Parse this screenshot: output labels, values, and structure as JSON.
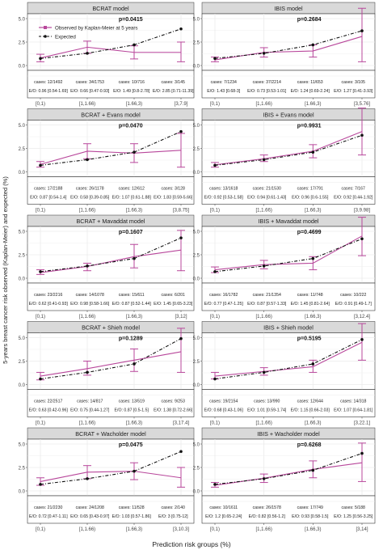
{
  "figure": {
    "ylabel": "5-years breast cancer risk observed (Kaplan-Meier) and expected (%)",
    "xlabel": "Prediction risk groups (%)",
    "legend": {
      "observed": "Observed by Kaplan-Meier at 5 years",
      "expected": "Expected",
      "placement": "top-left inside first panel"
    },
    "colors": {
      "observed": "#b8479b",
      "expected": "#111111",
      "strip": "#d9d9d9",
      "grid": "#ebebeb"
    }
  },
  "chart_data": [
    {
      "type": "line",
      "title": "BCRAT model",
      "pvalue": "p=0.0415",
      "ylim": [
        0,
        5
      ],
      "yticks": [
        "0.0",
        "2.5",
        "5.0"
      ],
      "categories": [
        "[0,1)",
        "[1,1.66)",
        "[1.66,3)",
        "[3,7.9]"
      ],
      "series": [
        {
          "name": "Observed by Kaplan-Meier at 5 years",
          "values": [
            0.8,
            1.95,
            1.4,
            1.4
          ],
          "lower": [
            0.4,
            1.3,
            0.7,
            0.4
          ],
          "upper": [
            1.2,
            2.6,
            2.1,
            2.5
          ]
        },
        {
          "name": "Expected",
          "values": [
            0.75,
            1.3,
            2.2,
            3.9
          ]
        }
      ],
      "cases": [
        "cases: 12/1492",
        "cases: 34/1753",
        "cases: 10/716",
        "cases: 3/145"
      ],
      "eo": [
        "E/O: 0.96 [0.54-1.69]",
        "E/O: 0.66 [0.47-0.93]",
        "E/O: 1.49 [0.8-2.78]",
        "E/O: 2.85 [0.71-11.39]"
      ]
    },
    {
      "type": "line",
      "title": "IBIS model",
      "pvalue": "p=0.2684",
      "ylim": [
        0,
        5
      ],
      "yticks": [
        "0.0",
        "2.5",
        "5.0"
      ],
      "categories": [
        "[0,1)",
        "[1,1.66)",
        "[1.66,3)",
        "[3,5.76]"
      ],
      "series": [
        {
          "name": "Observed by Kaplan-Meier at 5 years",
          "values": [
            0.6,
            1.4,
            1.55,
            3.1
          ],
          "lower": [
            0.4,
            0.9,
            0.9,
            0.4
          ],
          "upper": [
            0.9,
            1.9,
            2.2,
            6.1
          ]
        },
        {
          "name": "Expected",
          "values": [
            0.75,
            1.3,
            2.2,
            3.7
          ]
        }
      ],
      "cases": [
        "cases: 7/1234",
        "cases: 37/2214",
        "cases: 11/653",
        "cases: 3/105"
      ],
      "eo": [
        "E/O: 1.43 [0.68-3]",
        "E/O: 0.73 [0.53-1.01]",
        "E/O: 1.24 [0.69-2.24]",
        "E/O: 1.27 [0.41-3.93]"
      ]
    },
    {
      "type": "line",
      "title": "BCRAT + Evans model",
      "pvalue": "p=0.0470",
      "ylim": [
        0,
        5
      ],
      "yticks": [
        "0.0",
        "2.5",
        "5.0"
      ],
      "categories": [
        "[0,1)",
        "[1,1.66)",
        "[1.66,3)",
        "[3,8.75]"
      ],
      "series": [
        {
          "name": "Observed by Kaplan-Meier at 5 years",
          "values": [
            0.8,
            2.2,
            2.0,
            2.3
          ],
          "lower": [
            0.5,
            1.4,
            1.0,
            0.5
          ],
          "upper": [
            1.1,
            3.0,
            3.0,
            4.1
          ]
        },
        {
          "name": "Expected",
          "values": [
            0.7,
            1.3,
            2.1,
            4.3
          ]
        }
      ],
      "cases": [
        "cases: 17/2188",
        "cases: 26/1178",
        "cases: 12/612",
        "cases: 3/128"
      ],
      "eo": [
        "E/O: 0.87 [0.54-1.4]",
        "E/O: 0.58 [0.39-0.85]",
        "E/O: 1.07 [0.61-1.88]",
        "E/O: 1.83 [0.59-5.66]"
      ]
    },
    {
      "type": "line",
      "title": "IBIS + Evans model",
      "pvalue": "p=0.9931",
      "ylim": [
        0,
        5
      ],
      "yticks": [
        "0.0",
        "2.5",
        "5.0"
      ],
      "categories": [
        "[0,1)",
        "[1,1.66)",
        "[1.66,3)",
        "[3,9.98]"
      ],
      "series": [
        {
          "name": "Observed by Kaplan-Meier at 5 years",
          "values": [
            0.75,
            1.4,
            2.2,
            4.3
          ],
          "lower": [
            0.5,
            1.1,
            1.5,
            1.8
          ],
          "upper": [
            1.0,
            1.8,
            2.9,
            6.8
          ]
        },
        {
          "name": "Expected",
          "values": [
            0.7,
            1.3,
            2.1,
            3.9
          ]
        }
      ],
      "cases": [
        "cases: 13/1618",
        "cases: 21/1530",
        "cases: 17/791",
        "cases: 7/167"
      ],
      "eo": [
        "E/O: 0.92 [0.53-1.58]",
        "E/O: 0.94 [0.61-1.43]",
        "E/O: 0.96 [0.6-1.55]",
        "E/O: 0.92 [0.44-1.92]"
      ]
    },
    {
      "type": "line",
      "title": "BCRAT + Mavaddat model",
      "pvalue": "p=0.1607",
      "ylim": [
        0,
        5
      ],
      "yticks": [
        "0.0",
        "2.5",
        "5.0"
      ],
      "categories": [
        "[0,1)",
        "[1,1.66)",
        "[1.66,3)",
        "[3,12]"
      ],
      "series": [
        {
          "name": "Observed by Kaplan-Meier at 5 years",
          "values": [
            0.6,
            1.25,
            2.3,
            3.0
          ],
          "lower": [
            0.4,
            0.8,
            1.1,
            0.8
          ],
          "upper": [
            0.9,
            1.6,
            3.6,
            5.1
          ]
        },
        {
          "name": "Expected",
          "values": [
            0.7,
            1.3,
            2.1,
            4.3
          ]
        }
      ],
      "cases": [
        "cases: 23/2216",
        "cases: 14/1078",
        "cases: 15/611",
        "cases: 6/201"
      ],
      "eo": [
        "E/O: 0.62 [0.41-0.93]",
        "E/O: 0.98 [0.58-1.66]",
        "E/O: 0.87 [0.52-1.44]",
        "E/O: 1.45 [0.65-3.23]"
      ]
    },
    {
      "type": "line",
      "title": "IBIS + Mavaddat model",
      "pvalue": "p=0.4699",
      "ylim": [
        0,
        5
      ],
      "yticks": [
        "0.0",
        "2.5",
        "5.0"
      ],
      "categories": [
        "[0,1)",
        "[1,1.66)",
        "[1.66,3)",
        "[3,12.4]"
      ],
      "series": [
        {
          "name": "Observed by Kaplan-Meier at 5 years",
          "values": [
            0.9,
            1.45,
            1.6,
            4.5
          ],
          "lower": [
            0.6,
            1.0,
            0.9,
            2.4
          ],
          "upper": [
            1.2,
            1.9,
            2.3,
            6.5
          ]
        },
        {
          "name": "Expected",
          "values": [
            0.7,
            1.3,
            2.1,
            4.2
          ]
        }
      ],
      "cases": [
        "cases: 16/1782",
        "cases: 21/1354",
        "cases: 11/748",
        "cases: 10/222"
      ],
      "eo": [
        "E/O: 0.77 [0.47-1.25]",
        "E/O: 0.87 [0.57-1.33]",
        "E/O: 1.45 [0.81-2.64]",
        "E/O: 0.91 [0.49-1.7]"
      ]
    },
    {
      "type": "line",
      "title": "BCRAT + Shieh model",
      "pvalue": "p=0.1289",
      "ylim": [
        0,
        5
      ],
      "yticks": [
        "0.0",
        "2.5",
        "5.0"
      ],
      "categories": [
        "[0,1)",
        "[1,1.66)",
        "[1.66,3)",
        "[3,17.4]"
      ],
      "series": [
        {
          "name": "Observed by Kaplan-Meier at 5 years",
          "values": [
            0.9,
            1.7,
            2.6,
            3.5
          ],
          "lower": [
            0.5,
            1.0,
            1.4,
            1.3
          ],
          "upper": [
            1.3,
            2.5,
            3.8,
            6.0
          ]
        },
        {
          "name": "Expected",
          "values": [
            0.6,
            1.3,
            2.2,
            4.9
          ]
        }
      ],
      "cases": [
        "cases: 22/2517",
        "cases: 14/817",
        "cases: 13/519",
        "cases: 9/253"
      ],
      "eo": [
        "E/O: 0.63 [0.42-0.96]",
        "E/O: 0.75 [0.44-1.27]",
        "E/O: 0.87 [0.5-1.5]",
        "E/O: 1.38 [0.72-2.66]"
      ]
    },
    {
      "type": "line",
      "title": "IBIS + Shieh model",
      "pvalue": "p=0.5195",
      "ylim": [
        0,
        5
      ],
      "yticks": [
        "0.0",
        "2.5",
        "5.0"
      ],
      "categories": [
        "[0,1)",
        "[1,1.66)",
        "[1.66,3)",
        "[3,22.1]"
      ],
      "series": [
        {
          "name": "Observed by Kaplan-Meier at 5 years",
          "values": [
            0.9,
            1.4,
            1.9,
            4.5
          ],
          "lower": [
            0.6,
            1.0,
            1.3,
            2.6
          ],
          "upper": [
            1.3,
            1.8,
            2.6,
            6.5
          ]
        },
        {
          "name": "Expected",
          "values": [
            0.6,
            1.3,
            2.2,
            4.8
          ]
        }
      ],
      "cases": [
        "cases: 19/2154",
        "cases: 13/990",
        "cases: 12/644",
        "cases: 14/318"
      ],
      "eo": [
        "E/O: 0.68 [0.43-1.06]",
        "E/O: 1.01 [0.59-1.74]",
        "E/O: 1.15 [0.66-2.03]",
        "E/O: 1.07 [0.64-1.81]"
      ]
    },
    {
      "type": "line",
      "title": "BCRAT + Wacholder model",
      "pvalue": "p=0.0475",
      "ylim": [
        0,
        5
      ],
      "yticks": [
        "0.0",
        "2.5",
        "5.0"
      ],
      "categories": [
        "[0,1)",
        "[1,1.66)",
        "[1.66,3)",
        "[3,10.3]"
      ],
      "series": [
        {
          "name": "Observed by Kaplan-Meier at 5 years",
          "values": [
            1.0,
            2.0,
            2.1,
            1.4
          ],
          "lower": [
            0.6,
            1.3,
            1.2,
            0.4
          ],
          "upper": [
            1.4,
            2.7,
            3.0,
            2.5
          ]
        },
        {
          "name": "Expected",
          "values": [
            0.7,
            1.3,
            2.1,
            4.2
          ]
        }
      ],
      "cases": [
        "cases: 21/2230",
        "cases: 24/1208",
        "cases: 11/528",
        "cases: 2/140"
      ],
      "eo": [
        "E/O: 0.72 [0.47-1.11]",
        "E/O: 0.65 [0.43-0.97]",
        "E/O: 1.03 [0.57-1.86]",
        "E/O: 3 [0.75-12]"
      ]
    },
    {
      "type": "line",
      "title": "IBIS + Wacholder model",
      "pvalue": "p=0.6268",
      "ylim": [
        0,
        5
      ],
      "yticks": [
        "0.0",
        "2.5",
        "5.0"
      ],
      "categories": [
        "[0,1)",
        "[1,1.66)",
        "[1.66,3)",
        "[3,14]"
      ],
      "series": [
        {
          "name": "Observed by Kaplan-Meier at 5 years",
          "values": [
            0.6,
            1.35,
            2.3,
            3.0
          ],
          "lower": [
            0.4,
            0.9,
            1.4,
            1.0
          ],
          "upper": [
            0.9,
            1.8,
            3.2,
            5.1
          ]
        },
        {
          "name": "Expected",
          "values": [
            0.7,
            1.3,
            2.2,
            4.0
          ]
        }
      ],
      "cases": [
        "cases: 10/1611",
        "cases: 26/1578",
        "cases: 17/749",
        "cases: 5/188"
      ],
      "eo": [
        "E/O: 1.2 [0.65-2.24]",
        "E/O: 0.82 [0.56-1.2]",
        "E/O: 0.93 [0.58-1.5]",
        "E/O: 1.25 [0.56-3.25]"
      ]
    }
  ]
}
